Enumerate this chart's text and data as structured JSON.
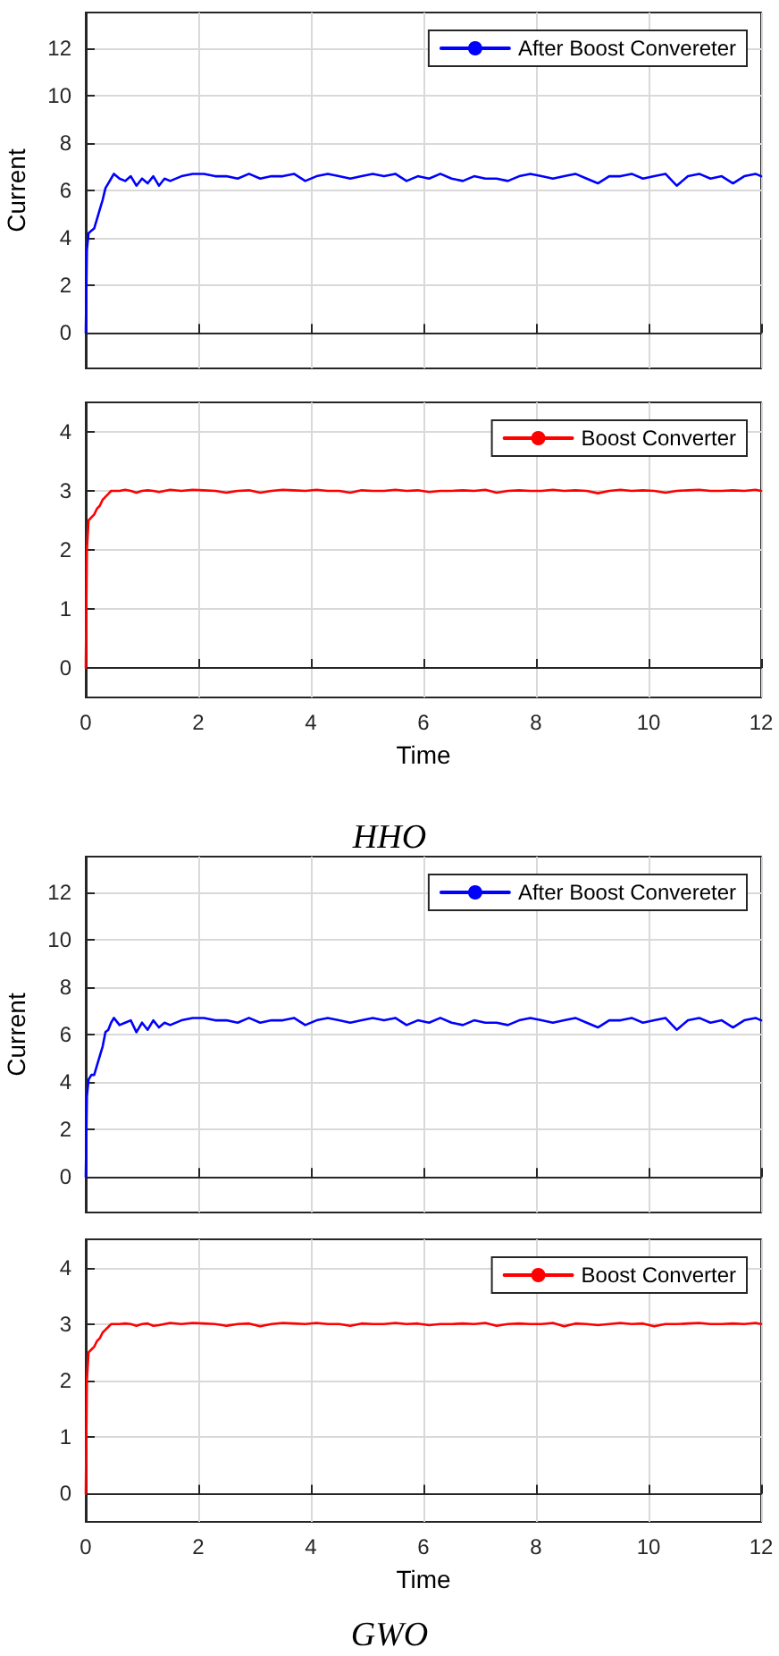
{
  "chart_data": [
    {
      "type": "line",
      "ylabel": "Current",
      "x": [
        0,
        0.02,
        0.05,
        0.1,
        0.15,
        0.2,
        0.25,
        0.3,
        0.35,
        0.4,
        0.45,
        0.5,
        0.6,
        0.7,
        0.8,
        0.9,
        1.0,
        1.1,
        1.2,
        1.3,
        1.4,
        1.5,
        1.7,
        1.9,
        2.1,
        2.3,
        2.5,
        2.7,
        2.9,
        3.1,
        3.3,
        3.5,
        3.7,
        3.9,
        4.1,
        4.3,
        4.5,
        4.7,
        4.9,
        5.1,
        5.3,
        5.5,
        5.7,
        5.9,
        6.1,
        6.3,
        6.5,
        6.7,
        6.9,
        7.1,
        7.3,
        7.5,
        7.7,
        7.9,
        8.1,
        8.3,
        8.5,
        8.7,
        8.9,
        9.1,
        9.3,
        9.5,
        9.7,
        9.9,
        10.1,
        10.3,
        10.5,
        10.7,
        10.9,
        11.1,
        11.3,
        11.5,
        11.7,
        11.9,
        12
      ],
      "series": [
        {
          "name": "After Boost Convereter",
          "color": "#0000ff",
          "values": [
            0,
            3.5,
            4.2,
            4.3,
            4.4,
            4.8,
            5.2,
            5.6,
            6.1,
            6.3,
            6.5,
            6.7,
            6.5,
            6.4,
            6.6,
            6.2,
            6.5,
            6.3,
            6.6,
            6.2,
            6.5,
            6.4,
            6.6,
            6.7,
            6.7,
            6.6,
            6.6,
            6.5,
            6.7,
            6.5,
            6.6,
            6.6,
            6.7,
            6.4,
            6.6,
            6.7,
            6.6,
            6.5,
            6.6,
            6.7,
            6.6,
            6.7,
            6.4,
            6.6,
            6.5,
            6.7,
            6.5,
            6.4,
            6.6,
            6.5,
            6.5,
            6.4,
            6.6,
            6.7,
            6.6,
            6.5,
            6.6,
            6.7,
            6.5,
            6.3,
            6.6,
            6.6,
            6.7,
            6.5,
            6.6,
            6.7,
            6.2,
            6.6,
            6.7,
            6.5,
            6.6,
            6.3,
            6.6,
            6.7,
            6.6
          ]
        }
      ],
      "xlim": [
        0,
        12
      ],
      "xticks": [
        0,
        2,
        4,
        6,
        8,
        10,
        12
      ],
      "ylim": [
        -1.5,
        13.5
      ],
      "yticks": [
        0,
        2,
        4,
        6,
        8,
        10,
        12
      ],
      "grid": true,
      "legend": "top right",
      "marker": "none",
      "line_style": "solid",
      "tick_labels": "y"
    },
    {
      "type": "line",
      "xlabel": "Time",
      "annotations": [
        "HHO"
      ],
      "x": [
        0,
        0.02,
        0.05,
        0.1,
        0.15,
        0.2,
        0.25,
        0.3,
        0.35,
        0.4,
        0.45,
        0.5,
        0.6,
        0.7,
        0.8,
        0.9,
        1.0,
        1.1,
        1.2,
        1.3,
        1.4,
        1.5,
        1.7,
        1.9,
        2.1,
        2.3,
        2.5,
        2.7,
        2.9,
        3.1,
        3.3,
        3.5,
        3.7,
        3.9,
        4.1,
        4.3,
        4.5,
        4.7,
        4.9,
        5.1,
        5.3,
        5.5,
        5.7,
        5.9,
        6.1,
        6.3,
        6.5,
        6.7,
        6.9,
        7.1,
        7.3,
        7.5,
        7.7,
        7.9,
        8.1,
        8.3,
        8.5,
        8.7,
        8.9,
        9.1,
        9.3,
        9.5,
        9.7,
        9.9,
        10.1,
        10.3,
        10.5,
        10.7,
        10.9,
        11.1,
        11.3,
        11.5,
        11.7,
        11.9,
        12
      ],
      "series": [
        {
          "name": "Boost Converter",
          "color": "#ff0000",
          "values": [
            0,
            2.0,
            2.5,
            2.55,
            2.6,
            2.7,
            2.75,
            2.85,
            2.9,
            2.95,
            3.0,
            3.0,
            3.0,
            3.02,
            3.0,
            2.97,
            3.0,
            3.01,
            3.0,
            2.98,
            3.0,
            3.02,
            3.0,
            3.02,
            3.01,
            3.0,
            2.97,
            3.0,
            3.01,
            2.97,
            3.0,
            3.02,
            3.01,
            3.0,
            3.02,
            3.0,
            3.0,
            2.97,
            3.01,
            3.0,
            3.0,
            3.02,
            3.0,
            3.01,
            2.98,
            3.0,
            3.0,
            3.01,
            3.0,
            3.02,
            2.97,
            3.0,
            3.01,
            3.0,
            3.0,
            3.02,
            3.0,
            3.01,
            3.0,
            2.96,
            3.0,
            3.02,
            3.0,
            3.01,
            3.0,
            2.97,
            3.0,
            3.01,
            3.02,
            3.0,
            3.0,
            3.01,
            3.0,
            3.02,
            3.0
          ]
        }
      ],
      "xlim": [
        0,
        12
      ],
      "xticks": [
        0,
        2,
        4,
        6,
        8,
        10,
        12
      ],
      "ylim": [
        -0.5,
        4.5
      ],
      "yticks": [
        0,
        1,
        2,
        3,
        4
      ],
      "grid": true,
      "legend": "top right",
      "marker": "none",
      "line_style": "solid"
    },
    {
      "type": "line",
      "ylabel": "Current",
      "x": [
        0,
        0.02,
        0.05,
        0.1,
        0.15,
        0.2,
        0.25,
        0.3,
        0.35,
        0.4,
        0.45,
        0.5,
        0.6,
        0.7,
        0.8,
        0.9,
        1.0,
        1.1,
        1.2,
        1.3,
        1.4,
        1.5,
        1.7,
        1.9,
        2.1,
        2.3,
        2.5,
        2.7,
        2.9,
        3.1,
        3.3,
        3.5,
        3.7,
        3.9,
        4.1,
        4.3,
        4.5,
        4.7,
        4.9,
        5.1,
        5.3,
        5.5,
        5.7,
        5.9,
        6.1,
        6.3,
        6.5,
        6.7,
        6.9,
        7.1,
        7.3,
        7.5,
        7.7,
        7.9,
        8.1,
        8.3,
        8.5,
        8.7,
        8.9,
        9.1,
        9.3,
        9.5,
        9.7,
        9.9,
        10.1,
        10.3,
        10.5,
        10.7,
        10.9,
        11.1,
        11.3,
        11.5,
        11.7,
        11.9,
        12
      ],
      "series": [
        {
          "name": "After Boost Convereter",
          "color": "#0000ff",
          "values": [
            0,
            3.4,
            4.1,
            4.3,
            4.3,
            4.7,
            5.1,
            5.5,
            6.1,
            6.2,
            6.5,
            6.7,
            6.4,
            6.5,
            6.6,
            6.1,
            6.5,
            6.2,
            6.6,
            6.3,
            6.5,
            6.4,
            6.6,
            6.7,
            6.7,
            6.6,
            6.6,
            6.5,
            6.7,
            6.5,
            6.6,
            6.6,
            6.7,
            6.4,
            6.6,
            6.7,
            6.6,
            6.5,
            6.6,
            6.7,
            6.6,
            6.7,
            6.4,
            6.6,
            6.5,
            6.7,
            6.5,
            6.4,
            6.6,
            6.5,
            6.5,
            6.4,
            6.6,
            6.7,
            6.6,
            6.5,
            6.6,
            6.7,
            6.5,
            6.3,
            6.6,
            6.6,
            6.7,
            6.5,
            6.6,
            6.7,
            6.2,
            6.6,
            6.7,
            6.5,
            6.6,
            6.3,
            6.6,
            6.7,
            6.6
          ]
        }
      ],
      "xlim": [
        0,
        12
      ],
      "xticks": [
        0,
        2,
        4,
        6,
        8,
        10,
        12
      ],
      "ylim": [
        -1.5,
        13.5
      ],
      "yticks": [
        0,
        2,
        4,
        6,
        8,
        10,
        12
      ],
      "grid": true,
      "legend": "top right",
      "marker": "none",
      "line_style": "solid",
      "tick_labels": "y"
    },
    {
      "type": "line",
      "xlabel": "Time",
      "annotations": [
        "GWO"
      ],
      "x": [
        0,
        0.02,
        0.05,
        0.1,
        0.15,
        0.2,
        0.25,
        0.3,
        0.35,
        0.4,
        0.45,
        0.5,
        0.6,
        0.7,
        0.8,
        0.9,
        1.0,
        1.1,
        1.2,
        1.3,
        1.4,
        1.5,
        1.7,
        1.9,
        2.1,
        2.3,
        2.5,
        2.7,
        2.9,
        3.1,
        3.3,
        3.5,
        3.7,
        3.9,
        4.1,
        4.3,
        4.5,
        4.7,
        4.9,
        5.1,
        5.3,
        5.5,
        5.7,
        5.9,
        6.1,
        6.3,
        6.5,
        6.7,
        6.9,
        7.1,
        7.3,
        7.5,
        7.7,
        7.9,
        8.1,
        8.3,
        8.5,
        8.7,
        8.9,
        9.1,
        9.3,
        9.5,
        9.7,
        9.9,
        10.1,
        10.3,
        10.5,
        10.7,
        10.9,
        11.1,
        11.3,
        11.5,
        11.7,
        11.9,
        12
      ],
      "series": [
        {
          "name": "Boost Converter",
          "color": "#ff0000",
          "values": [
            0,
            2.0,
            2.5,
            2.55,
            2.6,
            2.7,
            2.75,
            2.85,
            2.9,
            2.95,
            3.0,
            3.0,
            3.0,
            3.01,
            3.0,
            2.97,
            3.0,
            3.01,
            2.97,
            2.98,
            3.0,
            3.02,
            3.0,
            3.02,
            3.01,
            3.0,
            2.97,
            3.0,
            3.01,
            2.96,
            3.0,
            3.02,
            3.01,
            3.0,
            3.02,
            3.0,
            3.0,
            2.97,
            3.01,
            3.0,
            3.0,
            3.02,
            3.0,
            3.01,
            2.98,
            3.0,
            3.0,
            3.01,
            3.0,
            3.02,
            2.97,
            3.0,
            3.01,
            3.0,
            3.0,
            3.02,
            2.96,
            3.01,
            3.0,
            2.98,
            3.0,
            3.02,
            3.0,
            3.01,
            2.96,
            3.0,
            3.0,
            3.01,
            3.02,
            3.0,
            3.0,
            3.01,
            3.0,
            3.02,
            3.0
          ]
        }
      ],
      "xlim": [
        0,
        12
      ],
      "xticks": [
        0,
        2,
        4,
        6,
        8,
        10,
        12
      ],
      "ylim": [
        -0.5,
        4.5
      ],
      "yticks": [
        0,
        1,
        2,
        3,
        4
      ],
      "grid": true,
      "legend": "top right",
      "marker": "none",
      "line_style": "solid"
    }
  ]
}
